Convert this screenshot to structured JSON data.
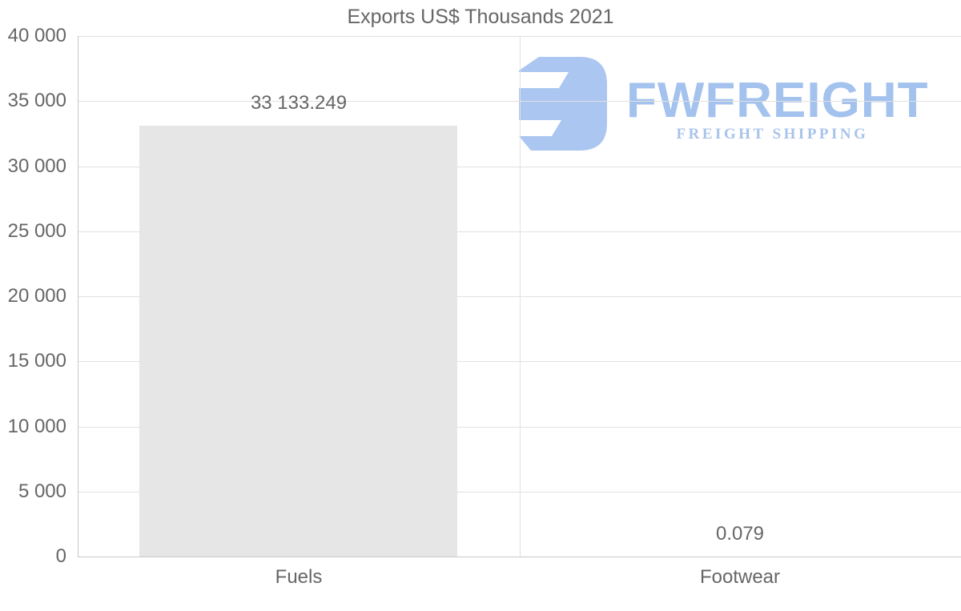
{
  "title": "Exports US$ Thousands 2021",
  "chart_data": {
    "type": "bar",
    "title": "Exports US$ Thousands 2021",
    "categories": [
      "Fuels",
      "Footwear"
    ],
    "values": [
      33133.249,
      0.079
    ],
    "value_labels": [
      "33 133.249",
      "0.079"
    ],
    "xlabel": "",
    "ylabel": "",
    "ylim": [
      0,
      40000
    ],
    "ytick_interval": 5000,
    "ytick_labels": [
      "0",
      "5 000",
      "10 000",
      "15 000",
      "20 000",
      "25 000",
      "30 000",
      "35 000",
      "40 000"
    ],
    "grid": true,
    "legend": "none",
    "bar_width_ratio": 0.72
  },
  "watermark": {
    "brand": "FWFREIGHT",
    "tagline": "FREIGHT SHIPPING",
    "icon": "fwfreight-logo-icon",
    "icon_color": "#abc6f0",
    "brand_color": "#a4c2ee",
    "tagline_color": "#a8c3ea"
  },
  "colors": {
    "background": "#ffffff",
    "bar_fill": "#e6e6e6",
    "grid_line": "#e1e1e1",
    "axis_line": "#c8c8c8",
    "text": "#666666"
  }
}
